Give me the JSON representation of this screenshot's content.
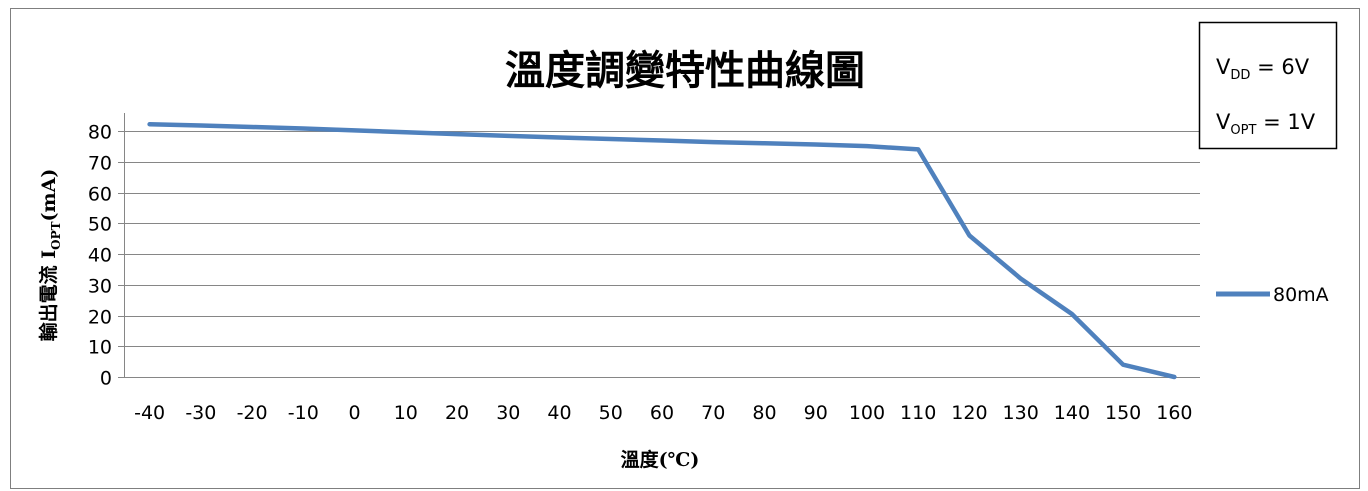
{
  "chart_data": {
    "type": "line",
    "title": "溫度調變特性曲線圖",
    "xlabel": "溫度(℃)",
    "ylabel_prefix": "輸出電流 I",
    "ylabel_sub": "OPT",
    "ylabel_suffix": "(mA)",
    "categories": [
      "-40",
      "-30",
      "-20",
      "-10",
      "0",
      "10",
      "20",
      "30",
      "40",
      "50",
      "60",
      "70",
      "80",
      "90",
      "100",
      "110",
      "120",
      "130",
      "140",
      "150",
      "160"
    ],
    "series": [
      {
        "name": "80mA",
        "values": [
          82.2,
          81.8,
          81.3,
          80.8,
          80.2,
          79.6,
          79.0,
          78.4,
          77.9,
          77.4,
          76.9,
          76.4,
          76.0,
          75.6,
          75.1,
          74.0,
          46.0,
          32.0,
          20.5,
          4.0,
          0.0
        ]
      }
    ],
    "yticks": [
      0,
      10,
      20,
      30,
      40,
      50,
      60,
      70,
      80
    ],
    "ylim": [
      0,
      86
    ],
    "grid": true,
    "legend": "right",
    "colors": {
      "series": "#4F81BD",
      "grid": "#868686",
      "border": "#7F7F7F",
      "text": "#000000"
    }
  },
  "annotation": {
    "vdd": {
      "prefix": "V",
      "sub": "DD",
      "suffix": " = 6V"
    },
    "vopt": {
      "prefix": "V",
      "sub": "OPT",
      "suffix": " = 1V"
    }
  }
}
